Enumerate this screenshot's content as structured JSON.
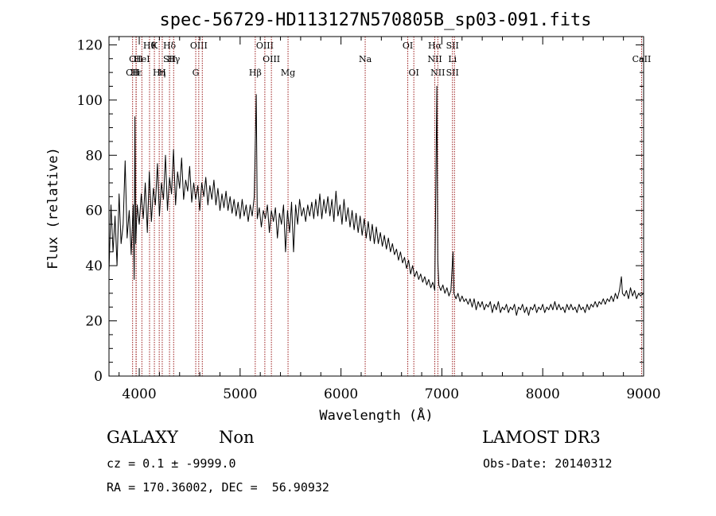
{
  "chart_data": {
    "type": "line",
    "title": "spec-56729-HD113127N570805B_sp03-091.fits",
    "xlabel": "Wavelength (Å)",
    "ylabel": "Flux (relative)",
    "xlim": [
      3700,
      9000
    ],
    "ylim": [
      0,
      123
    ],
    "x_ticks": [
      "4000",
      "5000",
      "6000",
      "7000",
      "8000",
      "9000"
    ],
    "y_ticks": [
      "0",
      "20",
      "40",
      "60",
      "80",
      "100",
      "120"
    ],
    "grid": false,
    "spectrum": [
      [
        3700,
        38
      ],
      [
        3720,
        62
      ],
      [
        3740,
        45
      ],
      [
        3760,
        58
      ],
      [
        3780,
        40
      ],
      [
        3800,
        66
      ],
      [
        3820,
        48
      ],
      [
        3840,
        55
      ],
      [
        3860,
        78
      ],
      [
        3880,
        50
      ],
      [
        3900,
        60
      ],
      [
        3920,
        44
      ],
      [
        3940,
        62
      ],
      [
        3950,
        35
      ],
      [
        3957,
        94
      ],
      [
        3965,
        48
      ],
      [
        3980,
        62
      ],
      [
        4000,
        55
      ],
      [
        4020,
        66
      ],
      [
        4040,
        57
      ],
      [
        4060,
        70
      ],
      [
        4080,
        52
      ],
      [
        4100,
        74
      ],
      [
        4120,
        56
      ],
      [
        4140,
        68
      ],
      [
        4160,
        62
      ],
      [
        4180,
        77
      ],
      [
        4200,
        58
      ],
      [
        4220,
        70
      ],
      [
        4240,
        64
      ],
      [
        4260,
        80
      ],
      [
        4280,
        60
      ],
      [
        4300,
        72
      ],
      [
        4320,
        66
      ],
      [
        4340,
        82
      ],
      [
        4360,
        62
      ],
      [
        4380,
        74
      ],
      [
        4400,
        68
      ],
      [
        4420,
        79
      ],
      [
        4440,
        64
      ],
      [
        4460,
        71
      ],
      [
        4480,
        67
      ],
      [
        4500,
        76
      ],
      [
        4520,
        63
      ],
      [
        4540,
        70
      ],
      [
        4560,
        64
      ],
      [
        4580,
        69
      ],
      [
        4600,
        60
      ],
      [
        4620,
        70
      ],
      [
        4640,
        65
      ],
      [
        4660,
        72
      ],
      [
        4680,
        62
      ],
      [
        4700,
        69
      ],
      [
        4720,
        64
      ],
      [
        4740,
        71
      ],
      [
        4760,
        62
      ],
      [
        4780,
        68
      ],
      [
        4800,
        60
      ],
      [
        4820,
        66
      ],
      [
        4840,
        61
      ],
      [
        4860,
        67
      ],
      [
        4880,
        60
      ],
      [
        4900,
        65
      ],
      [
        4920,
        59
      ],
      [
        4940,
        64
      ],
      [
        4960,
        58
      ],
      [
        4980,
        63
      ],
      [
        5000,
        57
      ],
      [
        5020,
        64
      ],
      [
        5040,
        58
      ],
      [
        5060,
        62
      ],
      [
        5080,
        56
      ],
      [
        5100,
        62
      ],
      [
        5120,
        58
      ],
      [
        5140,
        65
      ],
      [
        5160,
        102
      ],
      [
        5170,
        57
      ],
      [
        5190,
        61
      ],
      [
        5210,
        54
      ],
      [
        5230,
        60
      ],
      [
        5250,
        57
      ],
      [
        5270,
        62
      ],
      [
        5290,
        52
      ],
      [
        5310,
        60
      ],
      [
        5330,
        56
      ],
      [
        5350,
        61
      ],
      [
        5370,
        50
      ],
      [
        5390,
        59
      ],
      [
        5410,
        55
      ],
      [
        5430,
        62
      ],
      [
        5450,
        45
      ],
      [
        5470,
        60
      ],
      [
        5490,
        52
      ],
      [
        5510,
        63
      ],
      [
        5530,
        45
      ],
      [
        5550,
        62
      ],
      [
        5570,
        55
      ],
      [
        5590,
        64
      ],
      [
        5610,
        58
      ],
      [
        5630,
        61
      ],
      [
        5650,
        56
      ],
      [
        5670,
        62
      ],
      [
        5690,
        58
      ],
      [
        5710,
        63
      ],
      [
        5730,
        57
      ],
      [
        5750,
        64
      ],
      [
        5770,
        58
      ],
      [
        5790,
        66
      ],
      [
        5810,
        57
      ],
      [
        5830,
        64
      ],
      [
        5850,
        59
      ],
      [
        5870,
        65
      ],
      [
        5890,
        58
      ],
      [
        5910,
        64
      ],
      [
        5930,
        56
      ],
      [
        5950,
        67
      ],
      [
        5970,
        58
      ],
      [
        5990,
        62
      ],
      [
        6010,
        55
      ],
      [
        6030,
        64
      ],
      [
        6050,
        56
      ],
      [
        6070,
        61
      ],
      [
        6090,
        54
      ],
      [
        6110,
        60
      ],
      [
        6130,
        53
      ],
      [
        6150,
        59
      ],
      [
        6170,
        52
      ],
      [
        6190,
        58
      ],
      [
        6210,
        51
      ],
      [
        6230,
        57
      ],
      [
        6250,
        50
      ],
      [
        6270,
        56
      ],
      [
        6290,
        49
      ],
      [
        6310,
        55
      ],
      [
        6330,
        48
      ],
      [
        6350,
        54
      ],
      [
        6370,
        48
      ],
      [
        6390,
        52
      ],
      [
        6410,
        47
      ],
      [
        6430,
        51
      ],
      [
        6450,
        46
      ],
      [
        6470,
        50
      ],
      [
        6490,
        45
      ],
      [
        6510,
        48
      ],
      [
        6530,
        44
      ],
      [
        6550,
        46
      ],
      [
        6570,
        42
      ],
      [
        6590,
        45
      ],
      [
        6610,
        41
      ],
      [
        6630,
        43
      ],
      [
        6650,
        39
      ],
      [
        6670,
        42
      ],
      [
        6690,
        37
      ],
      [
        6710,
        40
      ],
      [
        6730,
        36
      ],
      [
        6750,
        38
      ],
      [
        6770,
        35
      ],
      [
        6790,
        37
      ],
      [
        6810,
        34
      ],
      [
        6830,
        36
      ],
      [
        6850,
        33
      ],
      [
        6870,
        35
      ],
      [
        6890,
        32
      ],
      [
        6910,
        34
      ],
      [
        6930,
        31
      ],
      [
        6950,
        105
      ],
      [
        6960,
        42
      ],
      [
        6970,
        33
      ],
      [
        6990,
        31
      ],
      [
        7010,
        33
      ],
      [
        7030,
        30
      ],
      [
        7050,
        32
      ],
      [
        7070,
        29
      ],
      [
        7090,
        31
      ],
      [
        7110,
        45
      ],
      [
        7120,
        30
      ],
      [
        7140,
        28
      ],
      [
        7160,
        30
      ],
      [
        7180,
        27
      ],
      [
        7200,
        29
      ],
      [
        7220,
        27
      ],
      [
        7240,
        28
      ],
      [
        7260,
        26
      ],
      [
        7280,
        28
      ],
      [
        7300,
        25
      ],
      [
        7320,
        28
      ],
      [
        7340,
        24
      ],
      [
        7360,
        27
      ],
      [
        7380,
        25
      ],
      [
        7400,
        27
      ],
      [
        7420,
        24
      ],
      [
        7440,
        26
      ],
      [
        7460,
        25
      ],
      [
        7480,
        27
      ],
      [
        7500,
        23
      ],
      [
        7520,
        26
      ],
      [
        7540,
        24
      ],
      [
        7560,
        27
      ],
      [
        7580,
        23
      ],
      [
        7600,
        25
      ],
      [
        7620,
        24
      ],
      [
        7640,
        26
      ],
      [
        7660,
        23
      ],
      [
        7680,
        25
      ],
      [
        7700,
        24
      ],
      [
        7720,
        26
      ],
      [
        7740,
        22
      ],
      [
        7760,
        25
      ],
      [
        7780,
        24
      ],
      [
        7800,
        26
      ],
      [
        7820,
        23
      ],
      [
        7840,
        25
      ],
      [
        7860,
        22
      ],
      [
        7880,
        25
      ],
      [
        7900,
        24
      ],
      [
        7920,
        26
      ],
      [
        7940,
        23
      ],
      [
        7960,
        25
      ],
      [
        7980,
        24
      ],
      [
        8000,
        26
      ],
      [
        8020,
        23
      ],
      [
        8040,
        25
      ],
      [
        8060,
        24
      ],
      [
        8080,
        26
      ],
      [
        8100,
        24
      ],
      [
        8120,
        27
      ],
      [
        8140,
        24
      ],
      [
        8160,
        26
      ],
      [
        8180,
        24
      ],
      [
        8200,
        25
      ],
      [
        8220,
        23
      ],
      [
        8240,
        26
      ],
      [
        8260,
        24
      ],
      [
        8280,
        26
      ],
      [
        8300,
        24
      ],
      [
        8320,
        25
      ],
      [
        8340,
        23
      ],
      [
        8360,
        26
      ],
      [
        8380,
        24
      ],
      [
        8400,
        25
      ],
      [
        8420,
        23
      ],
      [
        8440,
        26
      ],
      [
        8460,
        24
      ],
      [
        8480,
        26
      ],
      [
        8500,
        25
      ],
      [
        8520,
        27
      ],
      [
        8540,
        25
      ],
      [
        8560,
        27
      ],
      [
        8580,
        26
      ],
      [
        8600,
        28
      ],
      [
        8620,
        26
      ],
      [
        8640,
        28
      ],
      [
        8660,
        27
      ],
      [
        8680,
        29
      ],
      [
        8700,
        27
      ],
      [
        8720,
        30
      ],
      [
        8740,
        28
      ],
      [
        8760,
        31
      ],
      [
        8780,
        36
      ],
      [
        8790,
        30
      ],
      [
        8810,
        29
      ],
      [
        8830,
        31
      ],
      [
        8850,
        28
      ],
      [
        8870,
        32
      ],
      [
        8890,
        29
      ],
      [
        8910,
        31
      ],
      [
        8930,
        28
      ],
      [
        8950,
        30
      ],
      [
        8970,
        29
      ],
      [
        9000,
        30
      ]
    ],
    "lines": [
      {
        "wavelength": 3934,
        "labels": [
          {
            "text": "CII",
            "row": 3
          }
        ]
      },
      {
        "wavelength": 3968,
        "labels": [
          {
            "text": "H",
            "row": 3
          },
          {
            "text": "OII",
            "row": 2
          }
        ]
      },
      {
        "wavelength": 3970,
        "labels": [
          {
            "text": "Hε",
            "row": 3
          }
        ]
      },
      {
        "wavelength": 4026,
        "labels": [
          {
            "text": "HeI",
            "row": 2
          }
        ]
      },
      {
        "wavelength": 4102,
        "labels": [
          {
            "text": "Hθ",
            "row": 1
          }
        ]
      },
      {
        "wavelength": 4150,
        "labels": [
          {
            "text": "K",
            "row": 1
          }
        ]
      },
      {
        "wavelength": 4198,
        "labels": [
          {
            "text": "Hη",
            "row": 3
          }
        ]
      },
      {
        "wavelength": 4228,
        "labels": [
          {
            "text": "H",
            "row": 3
          }
        ]
      },
      {
        "wavelength": 4300,
        "labels": [
          {
            "text": "Hδ",
            "row": 1
          },
          {
            "text": "SII",
            "row": 2
          }
        ]
      },
      {
        "wavelength": 4341,
        "labels": [
          {
            "text": "Hγ",
            "row": 2
          }
        ]
      },
      {
        "wavelength": 4560,
        "labels": [
          {
            "text": "G",
            "row": 3
          }
        ]
      },
      {
        "wavelength": 4590,
        "labels": [
          {
            "text": "OIII",
            "row": 1
          }
        ]
      },
      {
        "wavelength": 4625,
        "labels": [
          {
            "text": "",
            "row": 0
          }
        ]
      },
      {
        "wavelength": 5150,
        "labels": [
          {
            "text": "Hβ",
            "row": 3
          }
        ]
      },
      {
        "wavelength": 5245,
        "labels": [
          {
            "text": "OIII",
            "row": 1
          }
        ]
      },
      {
        "wavelength": 5310,
        "labels": [
          {
            "text": "OIII",
            "row": 2
          }
        ]
      },
      {
        "wavelength": 5475,
        "labels": [
          {
            "text": "Mg",
            "row": 3
          }
        ]
      },
      {
        "wavelength": 6240,
        "labels": [
          {
            "text": "Na",
            "row": 2
          }
        ]
      },
      {
        "wavelength": 6662,
        "labels": [
          {
            "text": "OI",
            "row": 1
          }
        ]
      },
      {
        "wavelength": 6722,
        "labels": [
          {
            "text": "OI",
            "row": 3
          }
        ]
      },
      {
        "wavelength": 6930,
        "labels": [
          {
            "text": "Hα",
            "row": 1
          },
          {
            "text": "NII",
            "row": 2
          }
        ]
      },
      {
        "wavelength": 6960,
        "labels": [
          {
            "text": "NII",
            "row": 3
          }
        ]
      },
      {
        "wavelength": 7105,
        "labels": [
          {
            "text": "SII",
            "row": 1
          },
          {
            "text": "Li",
            "row": 2
          },
          {
            "text": "SII",
            "row": 3
          }
        ]
      },
      {
        "wavelength": 7125,
        "labels": [
          {
            "text": "",
            "row": 0
          }
        ]
      },
      {
        "wavelength": 8980,
        "labels": [
          {
            "text": "CaII",
            "row": 2
          }
        ]
      }
    ]
  },
  "info": {
    "class": "GALAXY",
    "subclass": "Non",
    "survey": "LAMOST DR3",
    "cz": "cz = 0.1 ± -9999.0",
    "obs_date": "Obs-Date: 20140312",
    "coords": "RA = 170.36002, DEC =  56.90932"
  },
  "colors": {
    "spectrum": "#000000",
    "line_marker": "#9b1c1c",
    "axis": "#000000"
  }
}
